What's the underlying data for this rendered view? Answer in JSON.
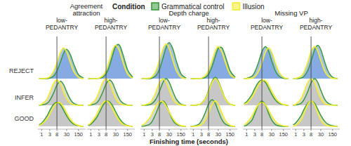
{
  "chart_data": {
    "type": "ridgeline",
    "legend_title": "Condition",
    "legend": "top",
    "x_label": "Finishing time (seconds)",
    "log": "x",
    "xlim": [
      0.6,
      400
    ],
    "xticks": [
      1,
      3,
      8,
      30,
      150
    ],
    "reference_line": 8,
    "categories": [
      "REJECT",
      "INFER",
      "GOOD"
    ],
    "colors": [
      "#7099dc",
      "#bdbdbd",
      "#bdbdbd"
    ],
    "series": [
      {
        "name": "Grammatical control",
        "color": "#3a9a3a"
      },
      {
        "name": "Illusion",
        "color": "#f2ee2e"
      }
    ],
    "x": [
      0.7,
      1,
      2,
      3,
      5,
      8,
      13,
      20,
      30,
      50,
      80,
      150,
      300
    ],
    "facets": [
      {
        "title": "Agreement\nattraction",
        "panels": [
          {
            "title": "low-\nPEDANTRY",
            "rows": [
              {
                "series": [
                  {
                    "values": [
                      0,
                      0,
                      0,
                      0.02,
                      0.09,
                      0.28,
                      0.63,
                      0.96,
                      1.1,
                      0.9,
                      0.54,
                      0.15,
                      0.02
                    ]
                  },
                  {
                    "values": [
                      0,
                      0,
                      0.02,
                      0.07,
                      0.26,
                      0.6,
                      0.99,
                      1.15,
                      1.0,
                      0.6,
                      0.26,
                      0.05,
                      0
                    ]
                  }
                ]
              },
              {
                "series": [
                  {
                    "values": [
                      0,
                      0.01,
                      0.06,
                      0.18,
                      0.45,
                      0.76,
                      0.9,
                      0.77,
                      0.51,
                      0.22,
                      0.07,
                      0.01,
                      0
                    ]
                  },
                  {
                    "values": [
                      0.01,
                      0.04,
                      0.22,
                      0.47,
                      0.81,
                      0.95,
                      0.8,
                      0.49,
                      0.24,
                      0.07,
                      0.02,
                      0,
                      0
                    ]
                  }
                ]
              },
              {
                "series": [
                  {
                    "values": [
                      0.06,
                      0.12,
                      0.37,
                      0.59,
                      0.82,
                      0.9,
                      0.81,
                      0.6,
                      0.4,
                      0.19,
                      0.08,
                      0.02,
                      0
                    ]
                  },
                  {
                    "values": [
                      0.03,
                      0.08,
                      0.27,
                      0.46,
                      0.72,
                      0.88,
                      0.87,
                      0.72,
                      0.51,
                      0.27,
                      0.12,
                      0.03,
                      0
                    ]
                  }
                ]
              }
            ]
          },
          {
            "title": "high-\nPEDANTRY",
            "rows": [
              {
                "series": [
                  {
                    "values": [
                      0,
                      0,
                      0,
                      0.01,
                      0.05,
                      0.18,
                      0.49,
                      0.9,
                      1.22,
                      1.25,
                      0.9,
                      0.33,
                      0.05
                    ]
                  },
                  {
                    "values": [
                      0,
                      0,
                      0,
                      0.02,
                      0.1,
                      0.31,
                      0.71,
                      1.09,
                      1.25,
                      1.03,
                      0.61,
                      0.17,
                      0.02
                    ]
                  }
                ]
              },
              {
                "series": [
                  {
                    "values": [
                      0,
                      0.01,
                      0.07,
                      0.19,
                      0.48,
                      0.8,
                      0.95,
                      0.82,
                      0.54,
                      0.23,
                      0.08,
                      0.01,
                      0
                    ]
                  },
                  {
                    "values": [
                      0.01,
                      0.04,
                      0.23,
                      0.49,
                      0.85,
                      1.0,
                      0.84,
                      0.52,
                      0.25,
                      0.07,
                      0.02,
                      0,
                      0
                    ]
                  }
                ]
              },
              {
                "series": [
                  {
                    "values": [
                      0.04,
                      0.08,
                      0.29,
                      0.48,
                      0.76,
                      0.93,
                      0.92,
                      0.76,
                      0.54,
                      0.29,
                      0.13,
                      0.03,
                      0
                    ]
                  },
                  {
                    "values": [
                      0.06,
                      0.13,
                      0.39,
                      0.62,
                      0.86,
                      0.95,
                      0.86,
                      0.64,
                      0.42,
                      0.2,
                      0.08,
                      0.02,
                      0
                    ]
                  }
                ]
              }
            ]
          }
        ]
      },
      {
        "title": "Depth charge",
        "panels": [
          {
            "title": "low-\nPEDANTRY",
            "rows": [
              {
                "series": [
                  {
                    "values": [
                      0,
                      0,
                      0,
                      0.02,
                      0.11,
                      0.34,
                      0.77,
                      1.17,
                      1.35,
                      1.11,
                      0.66,
                      0.18,
                      0.02
                    ]
                  },
                  {
                    "values": [
                      0,
                      0,
                      0.02,
                      0.08,
                      0.3,
                      0.68,
                      1.12,
                      1.3,
                      1.13,
                      0.68,
                      0.3,
                      0.05,
                      0
                    ]
                  }
                ]
              },
              {
                "series": [
                  {
                    "values": [
                      0,
                      0,
                      0.02,
                      0.07,
                      0.23,
                      0.52,
                      0.86,
                      1.0,
                      0.87,
                      0.52,
                      0.23,
                      0.04,
                      0
                    ]
                  },
                  {
                    "values": [
                      0,
                      0.01,
                      0.07,
                      0.2,
                      0.5,
                      0.84,
                      1.0,
                      0.86,
                      0.57,
                      0.24,
                      0.08,
                      0.01,
                      0
                    ]
                  }
                ]
              },
              {
                "series": [
                  {
                    "values": [
                      0,
                      0.01,
                      0.07,
                      0.19,
                      0.48,
                      0.8,
                      0.95,
                      0.82,
                      0.54,
                      0.23,
                      0.08,
                      0.01,
                      0
                    ]
                  },
                  {
                    "values": [
                      0.04,
                      0.08,
                      0.29,
                      0.48,
                      0.76,
                      0.93,
                      0.92,
                      0.76,
                      0.54,
                      0.29,
                      0.13,
                      0.03,
                      0
                    ]
                  }
                ]
              }
            ]
          },
          {
            "title": "high-\nPEDANTRY",
            "rows": [
              {
                "series": [
                  {
                    "values": [
                      0,
                      0,
                      0,
                      0.01,
                      0.04,
                      0.16,
                      0.46,
                      0.83,
                      1.13,
                      1.15,
                      0.83,
                      0.3,
                      0.05
                    ]
                  },
                  {
                    "values": [
                      0,
                      0,
                      0,
                      0.02,
                      0.1,
                      0.3,
                      0.68,
                      1.04,
                      1.2,
                      0.98,
                      0.59,
                      0.16,
                      0.02
                    ]
                  }
                ]
              },
              {
                "series": [
                  {
                    "values": [
                      0,
                      0,
                      0.02,
                      0.07,
                      0.24,
                      0.55,
                      0.9,
                      1.05,
                      0.91,
                      0.55,
                      0.24,
                      0.04,
                      0
                    ]
                  },
                  {
                    "values": [
                      0,
                      0,
                      0.02,
                      0.07,
                      0.23,
                      0.52,
                      0.86,
                      1.0,
                      0.87,
                      0.52,
                      0.23,
                      0.04,
                      0
                    ]
                  }
                ]
              },
              {
                "series": [
                  {
                    "values": [
                      0,
                      0.01,
                      0.07,
                      0.2,
                      0.5,
                      0.84,
                      1.0,
                      0.86,
                      0.57,
                      0.24,
                      0.08,
                      0.01,
                      0
                    ]
                  },
                  {
                    "values": [
                      0,
                      0,
                      0.02,
                      0.06,
                      0.22,
                      0.49,
                      0.82,
                      0.95,
                      0.83,
                      0.49,
                      0.22,
                      0.04,
                      0
                    ]
                  }
                ]
              }
            ]
          }
        ]
      },
      {
        "title": "Missing VP",
        "panels": [
          {
            "title": "low-\nPEDANTRY",
            "rows": [
              {
                "series": [
                  {
                    "values": [
                      0,
                      0.01,
                      0.08,
                      0.24,
                      0.6,
                      1.01,
                      1.2,
                      1.03,
                      0.68,
                      0.29,
                      0.1,
                      0.01,
                      0
                    ]
                  },
                  {
                    "values": [
                      0,
                      0,
                      0.02,
                      0.07,
                      0.26,
                      0.6,
                      0.99,
                      1.15,
                      1.0,
                      0.6,
                      0.26,
                      0.05,
                      0
                    ]
                  }
                ]
              },
              {
                "series": [
                  {
                    "values": [
                      0.06,
                      0.13,
                      0.39,
                      0.62,
                      0.86,
                      0.95,
                      0.86,
                      0.64,
                      0.42,
                      0.2,
                      0.08,
                      0.02,
                      0
                    ]
                  },
                  {
                    "values": [
                      0.04,
                      0.08,
                      0.29,
                      0.48,
                      0.76,
                      0.93,
                      0.92,
                      0.76,
                      0.54,
                      0.29,
                      0.13,
                      0.03,
                      0
                    ]
                  }
                ]
              },
              {
                "series": [
                  {
                    "values": [
                      0.01,
                      0.04,
                      0.22,
                      0.47,
                      0.81,
                      0.95,
                      0.8,
                      0.49,
                      0.24,
                      0.07,
                      0.02,
                      0,
                      0
                    ]
                  },
                  {
                    "values": [
                      0.06,
                      0.12,
                      0.37,
                      0.59,
                      0.82,
                      0.9,
                      0.81,
                      0.6,
                      0.4,
                      0.19,
                      0.08,
                      0.02,
                      0
                    ]
                  }
                ]
              }
            ]
          },
          {
            "title": "high-\nPEDANTRY",
            "rows": [
              {
                "series": [
                  {
                    "values": [
                      0,
                      0,
                      0.02,
                      0.08,
                      0.29,
                      0.65,
                      1.08,
                      1.25,
                      1.09,
                      0.65,
                      0.29,
                      0.05,
                      0
                    ]
                  },
                  {
                    "values": [
                      0,
                      0.01,
                      0.08,
                      0.24,
                      0.6,
                      1.01,
                      1.2,
                      1.03,
                      0.68,
                      0.29,
                      0.1,
                      0.01,
                      0
                    ]
                  }
                ]
              },
              {
                "series": [
                  {
                    "values": [
                      0,
                      0.01,
                      0.07,
                      0.2,
                      0.5,
                      0.84,
                      1.0,
                      0.86,
                      0.57,
                      0.24,
                      0.08,
                      0.01,
                      0
                    ]
                  },
                  {
                    "values": [
                      0.01,
                      0.04,
                      0.23,
                      0.49,
                      0.85,
                      1.0,
                      0.84,
                      0.52,
                      0.25,
                      0.07,
                      0.02,
                      0,
                      0
                    ]
                  }
                ]
              },
              {
                "series": [
                  {
                    "values": [
                      0.06,
                      0.13,
                      0.39,
                      0.62,
                      0.86,
                      0.95,
                      0.86,
                      0.64,
                      0.42,
                      0.2,
                      0.08,
                      0.02,
                      0
                    ]
                  },
                  {
                    "values": [
                      0.01,
                      0.04,
                      0.22,
                      0.47,
                      0.81,
                      0.95,
                      0.8,
                      0.49,
                      0.24,
                      0.07,
                      0.02,
                      0,
                      0
                    ]
                  }
                ]
              }
            ]
          }
        ]
      }
    ]
  }
}
